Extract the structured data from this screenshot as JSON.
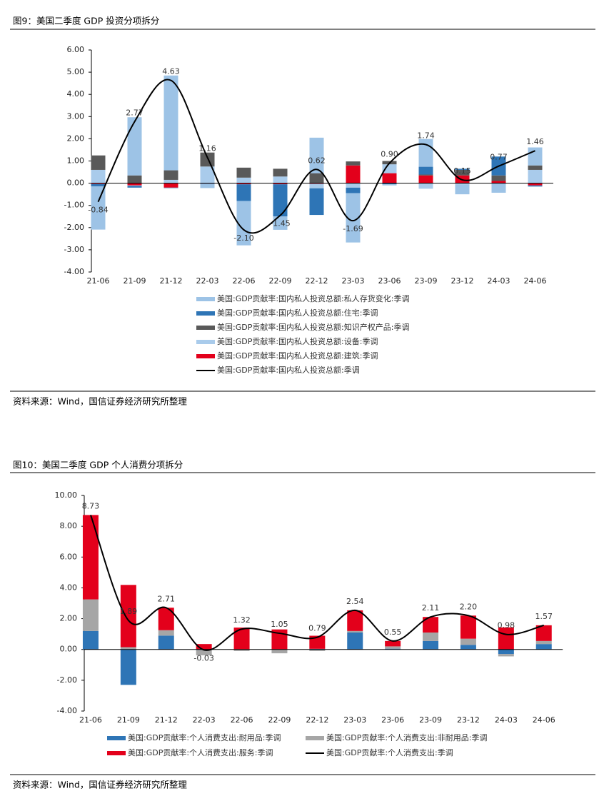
{
  "chart_data": [
    {
      "type": "bar",
      "stacked": true,
      "title": "图9：美国二季度 GDP 投资分项拆分",
      "source": "资料来源：Wind，国信证券经济研究所整理",
      "categories": [
        "21-06",
        "21-09",
        "21-12",
        "22-03",
        "22-06",
        "22-09",
        "22-12",
        "23-03",
        "23-06",
        "23-09",
        "23-12",
        "24-03",
        "24-06"
      ],
      "series": [
        {
          "name": "美国:GDP贡献率:国内私人投资总额:私人存货变化:季调",
          "color": "#9dc3e6",
          "values": [
            -1.95,
            2.62,
            4.27,
            -0.18,
            -2.0,
            -0.6,
            1.6,
            -2.22,
            -0.05,
            1.25,
            -0.45,
            -0.43,
            0.81
          ]
        },
        {
          "name": "美国:GDP贡献率:国内私人投资总额:住宅:季调",
          "color": "#2e75b6",
          "values": [
            -0.1,
            -0.08,
            -0.02,
            -0.02,
            -0.75,
            -1.45,
            -1.2,
            -0.25,
            -0.05,
            0.35,
            0.05,
            0.85,
            -0.05
          ]
        },
        {
          "name": "美国:GDP贡献率:国内私人投资总额:知识产权产品:季调",
          "color": "#595959",
          "values": [
            0.65,
            0.35,
            0.43,
            0.63,
            0.45,
            0.35,
            0.45,
            0.18,
            0.15,
            0.04,
            0.25,
            0.25,
            0.2
          ]
        },
        {
          "name": "美国:GDP贡献率:国内私人投资总额:设备:季调",
          "color": "#a9cbeb",
          "values": [
            0.6,
            -0.02,
            0.15,
            0.75,
            0.25,
            0.3,
            -0.2,
            -0.2,
            0.4,
            -0.25,
            -0.05,
            0.0,
            0.6
          ]
        },
        {
          "name": "美国:GDP贡献率:国内私人投资总额:建筑:季调",
          "color": "#e3001b",
          "values": [
            -0.04,
            -0.1,
            -0.2,
            -0.02,
            -0.05,
            -0.05,
            -0.03,
            0.8,
            0.45,
            0.35,
            0.35,
            0.1,
            -0.1
          ]
        },
        {
          "name": "美国:GDP贡献率:国内私人投资总额:季调",
          "type": "line",
          "color": "#000000",
          "values": [
            -0.84,
            2.77,
            4.63,
            1.16,
            -2.1,
            -1.45,
            0.62,
            -1.69,
            0.9,
            1.74,
            0.15,
            0.77,
            1.46
          ],
          "value_labels": [
            "-0.84",
            "2.77",
            "4.63",
            "1.16",
            "-2.10",
            "-1.45",
            "0.62",
            "-1.69",
            "0.90",
            "1.74",
            "0.15",
            "0.77",
            "1.46"
          ]
        }
      ],
      "ylim": [
        -4,
        6
      ],
      "yticks": [
        {
          "value": -4,
          "label": "-4.00"
        },
        {
          "value": -3,
          "label": "-3.00"
        },
        {
          "value": -2,
          "label": "-2.00"
        },
        {
          "value": -1,
          "label": "-1.00"
        },
        {
          "value": 0,
          "label": "0.00"
        },
        {
          "value": 1,
          "label": "1.00"
        },
        {
          "value": 2,
          "label": "2.00"
        },
        {
          "value": 3,
          "label": "3.00"
        },
        {
          "value": 4,
          "label": "4.00"
        },
        {
          "value": 5,
          "label": "5.00"
        },
        {
          "value": 6,
          "label": "6.00"
        }
      ],
      "grid": false,
      "legend": "bottom"
    },
    {
      "type": "bar",
      "stacked": true,
      "title": "图10：美国二季度 GDP 个人消费分项拆分",
      "source": "资料来源：Wind，国信证券经济研究所整理",
      "categories": [
        "21-06",
        "21-09",
        "21-12",
        "22-03",
        "22-06",
        "22-09",
        "22-12",
        "23-03",
        "23-06",
        "23-09",
        "23-12",
        "24-03",
        "24-06"
      ],
      "series": [
        {
          "name": "美国:GDP贡献率:个人消费支出:耐用品:季调",
          "color": "#2e75b6",
          "values": [
            1.2,
            -2.3,
            0.9,
            -0.03,
            0.0,
            0.0,
            0.04,
            1.1,
            0.05,
            0.55,
            0.3,
            -0.3,
            0.35
          ]
        },
        {
          "name": "美国:GDP贡献率:个人消费支出:非耐用品:季调",
          "color": "#a6a6a6",
          "values": [
            2.05,
            0.15,
            0.35,
            -0.35,
            -0.1,
            -0.25,
            -0.1,
            0.1,
            0.15,
            0.55,
            0.4,
            -0.15,
            0.2
          ]
        },
        {
          "name": "美国:GDP贡献率:个人消费支出:服务:季调",
          "color": "#e3001b",
          "values": [
            5.48,
            4.04,
            1.46,
            0.35,
            1.42,
            1.3,
            0.85,
            1.34,
            0.35,
            1.01,
            1.5,
            1.43,
            1.02
          ]
        },
        {
          "name": "美国:GDP贡献率:个人消费支出:季调",
          "type": "line",
          "color": "#000000",
          "values": [
            8.73,
            1.89,
            2.71,
            -0.03,
            1.32,
            1.05,
            0.79,
            2.54,
            0.55,
            2.11,
            2.2,
            0.98,
            1.57
          ],
          "value_labels": [
            "8.73",
            "1.89",
            "2.71",
            "-0.03",
            "1.32",
            "1.05",
            "0.79",
            "2.54",
            "0.55",
            "2.11",
            "2.20",
            "0.98",
            "1.57"
          ]
        }
      ],
      "ylim": [
        -4,
        10
      ],
      "yticks": [
        {
          "value": -4,
          "label": "-4.00"
        },
        {
          "value": -2,
          "label": "-2.00"
        },
        {
          "value": 0,
          "label": "0.00"
        },
        {
          "value": 2,
          "label": "2.00"
        },
        {
          "value": 4,
          "label": "4.00"
        },
        {
          "value": 6,
          "label": "6.00"
        },
        {
          "value": 8,
          "label": "8.00"
        },
        {
          "value": 10,
          "label": "10.00"
        }
      ],
      "grid": false,
      "legend": "bottom"
    }
  ]
}
